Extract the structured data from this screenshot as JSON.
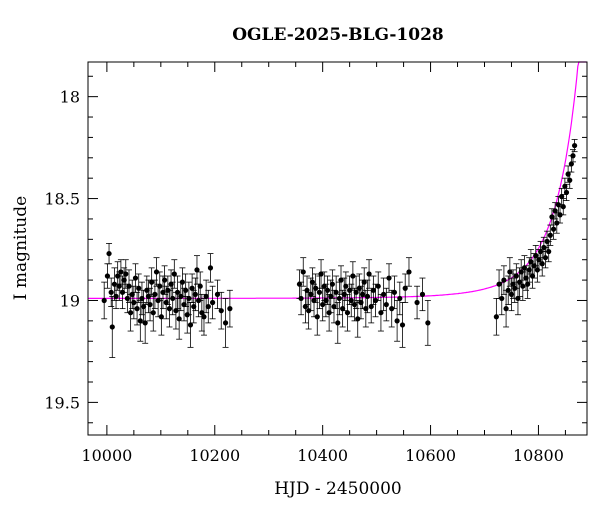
{
  "chart_data": {
    "type": "scatter",
    "title": "OGLE-2025-BLG-1028",
    "xlabel": "HJD - 2450000",
    "ylabel": "I magnitude",
    "xlim": [
      9965,
      10890
    ],
    "ylim": [
      19.66,
      17.83
    ],
    "y_inverted": true,
    "xticks": [
      10000,
      10200,
      10400,
      10600,
      10800
    ],
    "yticks": [
      18,
      18.5,
      19,
      19.5
    ],
    "xtick_labels": [
      "10000",
      "10200",
      "10400",
      "10600",
      "10800"
    ],
    "ytick_labels": [
      "18",
      "18.5",
      "19",
      "19.5"
    ],
    "grid": false,
    "colors": {
      "data": "#000000",
      "model": "#ff00ff",
      "axes": "#000000"
    },
    "series": [
      {
        "kind": "points_with_errorbars",
        "points": [
          [
            9995,
            19.0,
            0.09
          ],
          [
            10001,
            18.88,
            0.06
          ],
          [
            10004,
            18.77,
            0.05
          ],
          [
            10008,
            18.96,
            0.07
          ],
          [
            10010,
            19.13,
            0.15
          ],
          [
            10014,
            18.92,
            0.08
          ],
          [
            10017,
            18.98,
            0.06
          ],
          [
            10020,
            18.88,
            0.07
          ],
          [
            10023,
            18.93,
            0.07
          ],
          [
            10026,
            18.86,
            0.06
          ],
          [
            10029,
            18.96,
            0.08
          ],
          [
            10032,
            18.9,
            0.06
          ],
          [
            10035,
            18.87,
            0.07
          ],
          [
            10038,
            18.99,
            0.07
          ],
          [
            10041,
            18.93,
            0.08
          ],
          [
            10044,
            19.06,
            0.09
          ],
          [
            10047,
            18.97,
            0.07
          ],
          [
            10050,
            19.01,
            0.08
          ],
          [
            10053,
            18.89,
            0.07
          ],
          [
            10056,
            19.04,
            0.08
          ],
          [
            10059,
            18.94,
            0.07
          ],
          [
            10062,
            19.1,
            0.1
          ],
          [
            10065,
            18.99,
            0.08
          ],
          [
            10068,
            19.03,
            0.08
          ],
          [
            10071,
            19.11,
            0.1
          ],
          [
            10074,
            18.95,
            0.07
          ],
          [
            10077,
            18.98,
            0.08
          ],
          [
            10080,
            19.02,
            0.08
          ],
          [
            10083,
            18.91,
            0.07
          ],
          [
            10086,
            19.06,
            0.09
          ],
          [
            10089,
            18.97,
            0.07
          ],
          [
            10092,
            18.86,
            0.07
          ],
          [
            10095,
            19.0,
            0.08
          ],
          [
            10098,
            18.93,
            0.07
          ],
          [
            10101,
            19.08,
            0.09
          ],
          [
            10104,
            18.96,
            0.08
          ],
          [
            10107,
            18.9,
            0.07
          ],
          [
            10110,
            19.01,
            0.08
          ],
          [
            10113,
            18.95,
            0.07
          ],
          [
            10116,
            19.04,
            0.09
          ],
          [
            10119,
            18.92,
            0.07
          ],
          [
            10122,
            18.99,
            0.08
          ],
          [
            10125,
            18.87,
            0.07
          ],
          [
            10128,
            19.05,
            0.09
          ],
          [
            10131,
            18.96,
            0.08
          ],
          [
            10134,
            19.09,
            0.1
          ],
          [
            10137,
            18.98,
            0.07
          ],
          [
            10140,
            18.91,
            0.07
          ],
          [
            10143,
            19.02,
            0.08
          ],
          [
            10146,
            18.95,
            0.08
          ],
          [
            10149,
            19.07,
            0.09
          ],
          [
            10152,
            18.99,
            0.08
          ],
          [
            10155,
            19.12,
            0.11
          ],
          [
            10158,
            18.94,
            0.07
          ],
          [
            10161,
            19.03,
            0.08
          ],
          [
            10164,
            18.97,
            0.08
          ],
          [
            10167,
            18.85,
            0.07
          ],
          [
            10170,
            19.0,
            0.08
          ],
          [
            10173,
            18.93,
            0.07
          ],
          [
            10176,
            19.06,
            0.09
          ],
          [
            10180,
            19.08,
            0.09
          ],
          [
            10184,
            18.98,
            0.08
          ],
          [
            10188,
            19.03,
            0.08
          ],
          [
            10192,
            18.84,
            0.07
          ],
          [
            10196,
            19.01,
            0.08
          ],
          [
            10205,
            18.97,
            0.07
          ],
          [
            10212,
            19.05,
            0.09
          ],
          [
            10220,
            19.11,
            0.12
          ],
          [
            10228,
            19.04,
            0.09
          ],
          [
            10357,
            18.92,
            0.07
          ],
          [
            10360,
            18.99,
            0.08
          ],
          [
            10364,
            18.86,
            0.07
          ],
          [
            10368,
            19.03,
            0.08
          ],
          [
            10371,
            18.95,
            0.07
          ],
          [
            10374,
            19.05,
            0.09
          ],
          [
            10378,
            18.97,
            0.08
          ],
          [
            10381,
            18.91,
            0.07
          ],
          [
            10384,
            19.0,
            0.08
          ],
          [
            10387,
            18.94,
            0.07
          ],
          [
            10390,
            19.08,
            0.09
          ],
          [
            10394,
            18.96,
            0.08
          ],
          [
            10397,
            18.87,
            0.07
          ],
          [
            10400,
            19.02,
            0.08
          ],
          [
            10403,
            18.93,
            0.07
          ],
          [
            10406,
            19.0,
            0.08
          ],
          [
            10409,
            18.95,
            0.07
          ],
          [
            10412,
            19.06,
            0.09
          ],
          [
            10415,
            18.98,
            0.08
          ],
          [
            10418,
            18.92,
            0.07
          ],
          [
            10421,
            19.03,
            0.08
          ],
          [
            10425,
            18.96,
            0.08
          ],
          [
            10428,
            19.11,
            0.1
          ],
          [
            10431,
            18.99,
            0.08
          ],
          [
            10434,
            18.9,
            0.07
          ],
          [
            10437,
            19.04,
            0.09
          ],
          [
            10440,
            18.97,
            0.08
          ],
          [
            10443,
            18.93,
            0.07
          ],
          [
            10446,
            19.06,
            0.09
          ],
          [
            10450,
            18.95,
            0.07
          ],
          [
            10453,
            19.0,
            0.08
          ],
          [
            10456,
            18.88,
            0.07
          ],
          [
            10459,
            19.02,
            0.08
          ],
          [
            10462,
            18.96,
            0.08
          ],
          [
            10465,
            19.09,
            0.09
          ],
          [
            10468,
            18.94,
            0.07
          ],
          [
            10471,
            19.01,
            0.08
          ],
          [
            10474,
            18.97,
            0.07
          ],
          [
            10477,
            18.91,
            0.07
          ],
          [
            10480,
            19.04,
            0.09
          ],
          [
            10483,
            18.98,
            0.08
          ],
          [
            10486,
            18.87,
            0.07
          ],
          [
            10490,
            19.03,
            0.08
          ],
          [
            10494,
            18.95,
            0.07
          ],
          [
            10498,
            19.0,
            0.08
          ],
          [
            10503,
            18.93,
            0.07
          ],
          [
            10508,
            19.06,
            0.09
          ],
          [
            10513,
            18.97,
            0.08
          ],
          [
            10518,
            19.02,
            0.08
          ],
          [
            10523,
            18.89,
            0.07
          ],
          [
            10528,
            19.04,
            0.09
          ],
          [
            10533,
            18.96,
            0.08
          ],
          [
            10538,
            19.1,
            0.1
          ],
          [
            10543,
            18.99,
            0.08
          ],
          [
            10548,
            19.12,
            0.11
          ],
          [
            10553,
            18.94,
            0.07
          ],
          [
            10560,
            18.86,
            0.07
          ],
          [
            10575,
            19.01,
            0.08
          ],
          [
            10585,
            18.97,
            0.08
          ],
          [
            10595,
            19.11,
            0.11
          ],
          [
            10722,
            19.08,
            0.09
          ],
          [
            10727,
            18.92,
            0.07
          ],
          [
            10732,
            18.99,
            0.08
          ],
          [
            10736,
            18.9,
            0.07
          ],
          [
            10740,
            19.04,
            0.09
          ],
          [
            10744,
            18.95,
            0.07
          ],
          [
            10747,
            18.86,
            0.07
          ],
          [
            10750,
            18.97,
            0.08
          ],
          [
            10753,
            18.92,
            0.07
          ],
          [
            10756,
            18.94,
            0.07
          ],
          [
            10759,
            18.88,
            0.06
          ],
          [
            10762,
            18.99,
            0.08
          ],
          [
            10765,
            18.91,
            0.07
          ],
          [
            10768,
            18.86,
            0.06
          ],
          [
            10771,
            18.93,
            0.07
          ],
          [
            10774,
            18.84,
            0.06
          ],
          [
            10777,
            18.89,
            0.06
          ],
          [
            10780,
            18.92,
            0.07
          ],
          [
            10783,
            18.85,
            0.06
          ],
          [
            10786,
            18.81,
            0.06
          ],
          [
            10789,
            18.88,
            0.06
          ],
          [
            10792,
            18.83,
            0.06
          ],
          [
            10795,
            18.78,
            0.05
          ],
          [
            10798,
            18.85,
            0.06
          ],
          [
            10801,
            18.8,
            0.05
          ],
          [
            10804,
            18.76,
            0.05
          ],
          [
            10807,
            18.82,
            0.06
          ],
          [
            10810,
            18.74,
            0.05
          ],
          [
            10813,
            18.79,
            0.05
          ],
          [
            10816,
            18.71,
            0.05
          ],
          [
            10819,
            18.76,
            0.05
          ],
          [
            10822,
            18.68,
            0.05
          ],
          [
            10825,
            18.59,
            0.04
          ],
          [
            10828,
            18.65,
            0.05
          ],
          [
            10831,
            18.56,
            0.04
          ],
          [
            10834,
            18.62,
            0.05
          ],
          [
            10837,
            18.53,
            0.04
          ],
          [
            10840,
            18.58,
            0.04
          ],
          [
            10843,
            18.49,
            0.04
          ],
          [
            10846,
            18.54,
            0.04
          ],
          [
            10849,
            18.44,
            0.04
          ],
          [
            10852,
            18.47,
            0.04
          ],
          [
            10855,
            18.38,
            0.04
          ],
          [
            10858,
            18.41,
            0.04
          ],
          [
            10861,
            18.33,
            0.04
          ],
          [
            10864,
            18.29,
            0.03
          ],
          [
            10867,
            18.24,
            0.03
          ]
        ]
      },
      {
        "kind": "model_curve",
        "baseline": 18.99,
        "t0": 10905,
        "tE": 92,
        "u0": 0.12
      }
    ]
  }
}
